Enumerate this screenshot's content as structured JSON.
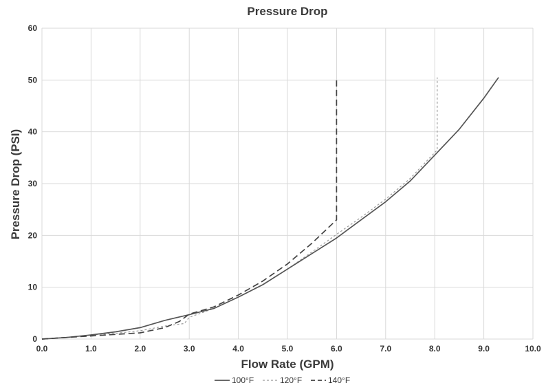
{
  "chart_data": {
    "type": "line",
    "title": "Pressure Drop",
    "xlabel": "Flow Rate (GPM)",
    "ylabel": "Pressure Drop (PSI)",
    "xlim": [
      0,
      10
    ],
    "ylim": [
      0,
      60
    ],
    "x_ticks": [
      "0.0",
      "1.0",
      "2.0",
      "3.0",
      "4.0",
      "5.0",
      "6.0",
      "7.0",
      "8.0",
      "9.0",
      "10.0"
    ],
    "y_ticks": [
      "0",
      "10",
      "20",
      "30",
      "40",
      "50",
      "60"
    ],
    "grid": true,
    "legend_position": "bottom-center",
    "series": [
      {
        "name": "100°F",
        "style": "solid",
        "color": "#555555",
        "x": [
          0,
          0.5,
          1.0,
          1.5,
          2.0,
          2.5,
          3.0,
          3.5,
          4.0,
          4.5,
          5.0,
          5.5,
          6.0,
          6.5,
          7.0,
          7.5,
          8.0,
          8.5,
          9.0,
          9.3
        ],
        "y": [
          0,
          0.3,
          0.8,
          1.4,
          2.2,
          3.6,
          4.7,
          5.9,
          8.1,
          10.5,
          13.5,
          16.5,
          19.5,
          23.0,
          26.5,
          30.5,
          35.5,
          40.5,
          46.5,
          50.5
        ]
      },
      {
        "name": "120°F",
        "style": "dotted",
        "color": "#9a9a9a",
        "x": [
          0,
          0.5,
          1.0,
          1.5,
          2.0,
          2.5,
          2.9,
          3.0,
          3.5,
          4.0,
          4.5,
          5.0,
          5.5,
          6.0,
          6.5,
          7.0,
          7.5,
          8.0,
          8.05,
          8.05
        ],
        "y": [
          0,
          0.3,
          0.8,
          1.1,
          1.6,
          2.5,
          3.0,
          4.2,
          5.9,
          8.1,
          10.5,
          13.5,
          16.8,
          20.2,
          23.5,
          27.0,
          31.0,
          36.0,
          36.5,
          50.5
        ]
      },
      {
        "name": "140°F",
        "style": "dashed",
        "color": "#444444",
        "x": [
          0,
          0.5,
          1.0,
          1.5,
          2.0,
          2.5,
          2.8,
          3.0,
          3.5,
          4.0,
          4.5,
          5.0,
          5.5,
          6.0,
          6.0
        ],
        "y": [
          0,
          0.3,
          0.6,
          0.9,
          1.2,
          2.2,
          3.4,
          4.8,
          6.2,
          8.5,
          11.2,
          14.5,
          18.5,
          23.0,
          50.5
        ]
      }
    ]
  }
}
